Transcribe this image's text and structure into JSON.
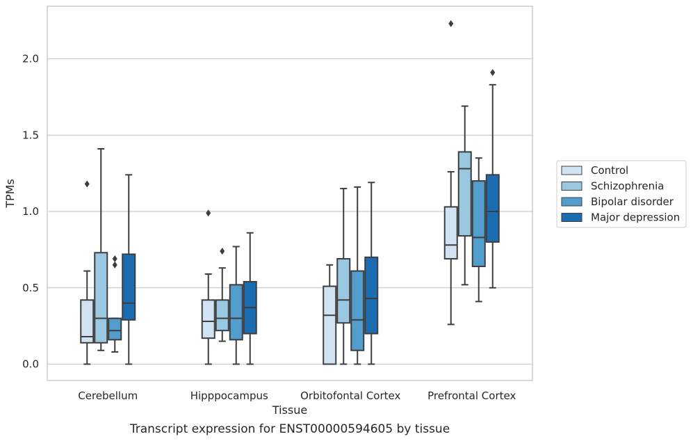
{
  "chart_data": {
    "type": "box",
    "title": "",
    "caption": "Transcript expression for ENST00000594605 by tissue",
    "xlabel": "Tissue",
    "ylabel": "TPMs",
    "ylim": [
      -0.11,
      2.35
    ],
    "yticks": [
      0.0,
      0.5,
      1.0,
      1.5,
      2.0
    ],
    "ytick_labels": [
      "0.0",
      "0.5",
      "1.0",
      "1.5",
      "2.0"
    ],
    "grid": "horizontal",
    "legend_position": "right",
    "categories": [
      "Cerebellum",
      "Hipppocampus",
      "Orbitofontal Cortex",
      "Prefrontal Cortex"
    ],
    "series": [
      {
        "name": "Control",
        "color": "#d1e2f2",
        "boxes": [
          {
            "whislo": 0.0,
            "q1": 0.14,
            "med": 0.18,
            "q3": 0.42,
            "whishi": 0.61,
            "fliers": [
              1.18
            ]
          },
          {
            "whislo": 0.0,
            "q1": 0.17,
            "med": 0.28,
            "q3": 0.42,
            "whishi": 0.59,
            "fliers": [
              0.99
            ]
          },
          {
            "whislo": 0.0,
            "q1": 0.0,
            "med": 0.32,
            "q3": 0.51,
            "whishi": 0.65,
            "fliers": []
          },
          {
            "whislo": 0.26,
            "q1": 0.69,
            "med": 0.78,
            "q3": 1.03,
            "whishi": 1.26,
            "fliers": [
              2.23
            ]
          }
        ]
      },
      {
        "name": "Schizophrenia",
        "color": "#9ac8e0",
        "boxes": [
          {
            "whislo": 0.09,
            "q1": 0.14,
            "med": 0.3,
            "q3": 0.73,
            "whishi": 1.41,
            "fliers": []
          },
          {
            "whislo": 0.15,
            "q1": 0.22,
            "med": 0.3,
            "q3": 0.42,
            "whishi": 0.63,
            "fliers": [
              0.74
            ]
          },
          {
            "whislo": 0.0,
            "q1": 0.27,
            "med": 0.42,
            "q3": 0.69,
            "whishi": 1.15,
            "fliers": []
          },
          {
            "whislo": 0.52,
            "q1": 0.84,
            "med": 1.28,
            "q3": 1.39,
            "whishi": 1.69,
            "fliers": []
          }
        ]
      },
      {
        "name": "Bipolar disorder",
        "color": "#529dcc",
        "boxes": [
          {
            "whislo": 0.08,
            "q1": 0.16,
            "med": 0.22,
            "q3": 0.3,
            "whishi": 0.3,
            "fliers": [
              0.65,
              0.69
            ]
          },
          {
            "whislo": 0.0,
            "q1": 0.16,
            "med": 0.3,
            "q3": 0.52,
            "whishi": 0.77,
            "fliers": []
          },
          {
            "whislo": 0.0,
            "q1": 0.09,
            "med": 0.29,
            "q3": 0.61,
            "whishi": 1.16,
            "fliers": []
          },
          {
            "whislo": 0.41,
            "q1": 0.64,
            "med": 0.83,
            "q3": 1.2,
            "whishi": 1.35,
            "fliers": []
          }
        ]
      },
      {
        "name": "Major depression",
        "color": "#1c6cb1",
        "boxes": [
          {
            "whislo": 0.0,
            "q1": 0.29,
            "med": 0.4,
            "q3": 0.72,
            "whishi": 1.24,
            "fliers": []
          },
          {
            "whislo": 0.0,
            "q1": 0.2,
            "med": 0.37,
            "q3": 0.54,
            "whishi": 0.86,
            "fliers": []
          },
          {
            "whislo": 0.0,
            "q1": 0.2,
            "med": 0.43,
            "q3": 0.7,
            "whishi": 1.19,
            "fliers": []
          },
          {
            "whislo": 0.5,
            "q1": 0.8,
            "med": 1.0,
            "q3": 1.24,
            "whishi": 1.83,
            "fliers": [
              1.91
            ]
          }
        ]
      }
    ]
  }
}
